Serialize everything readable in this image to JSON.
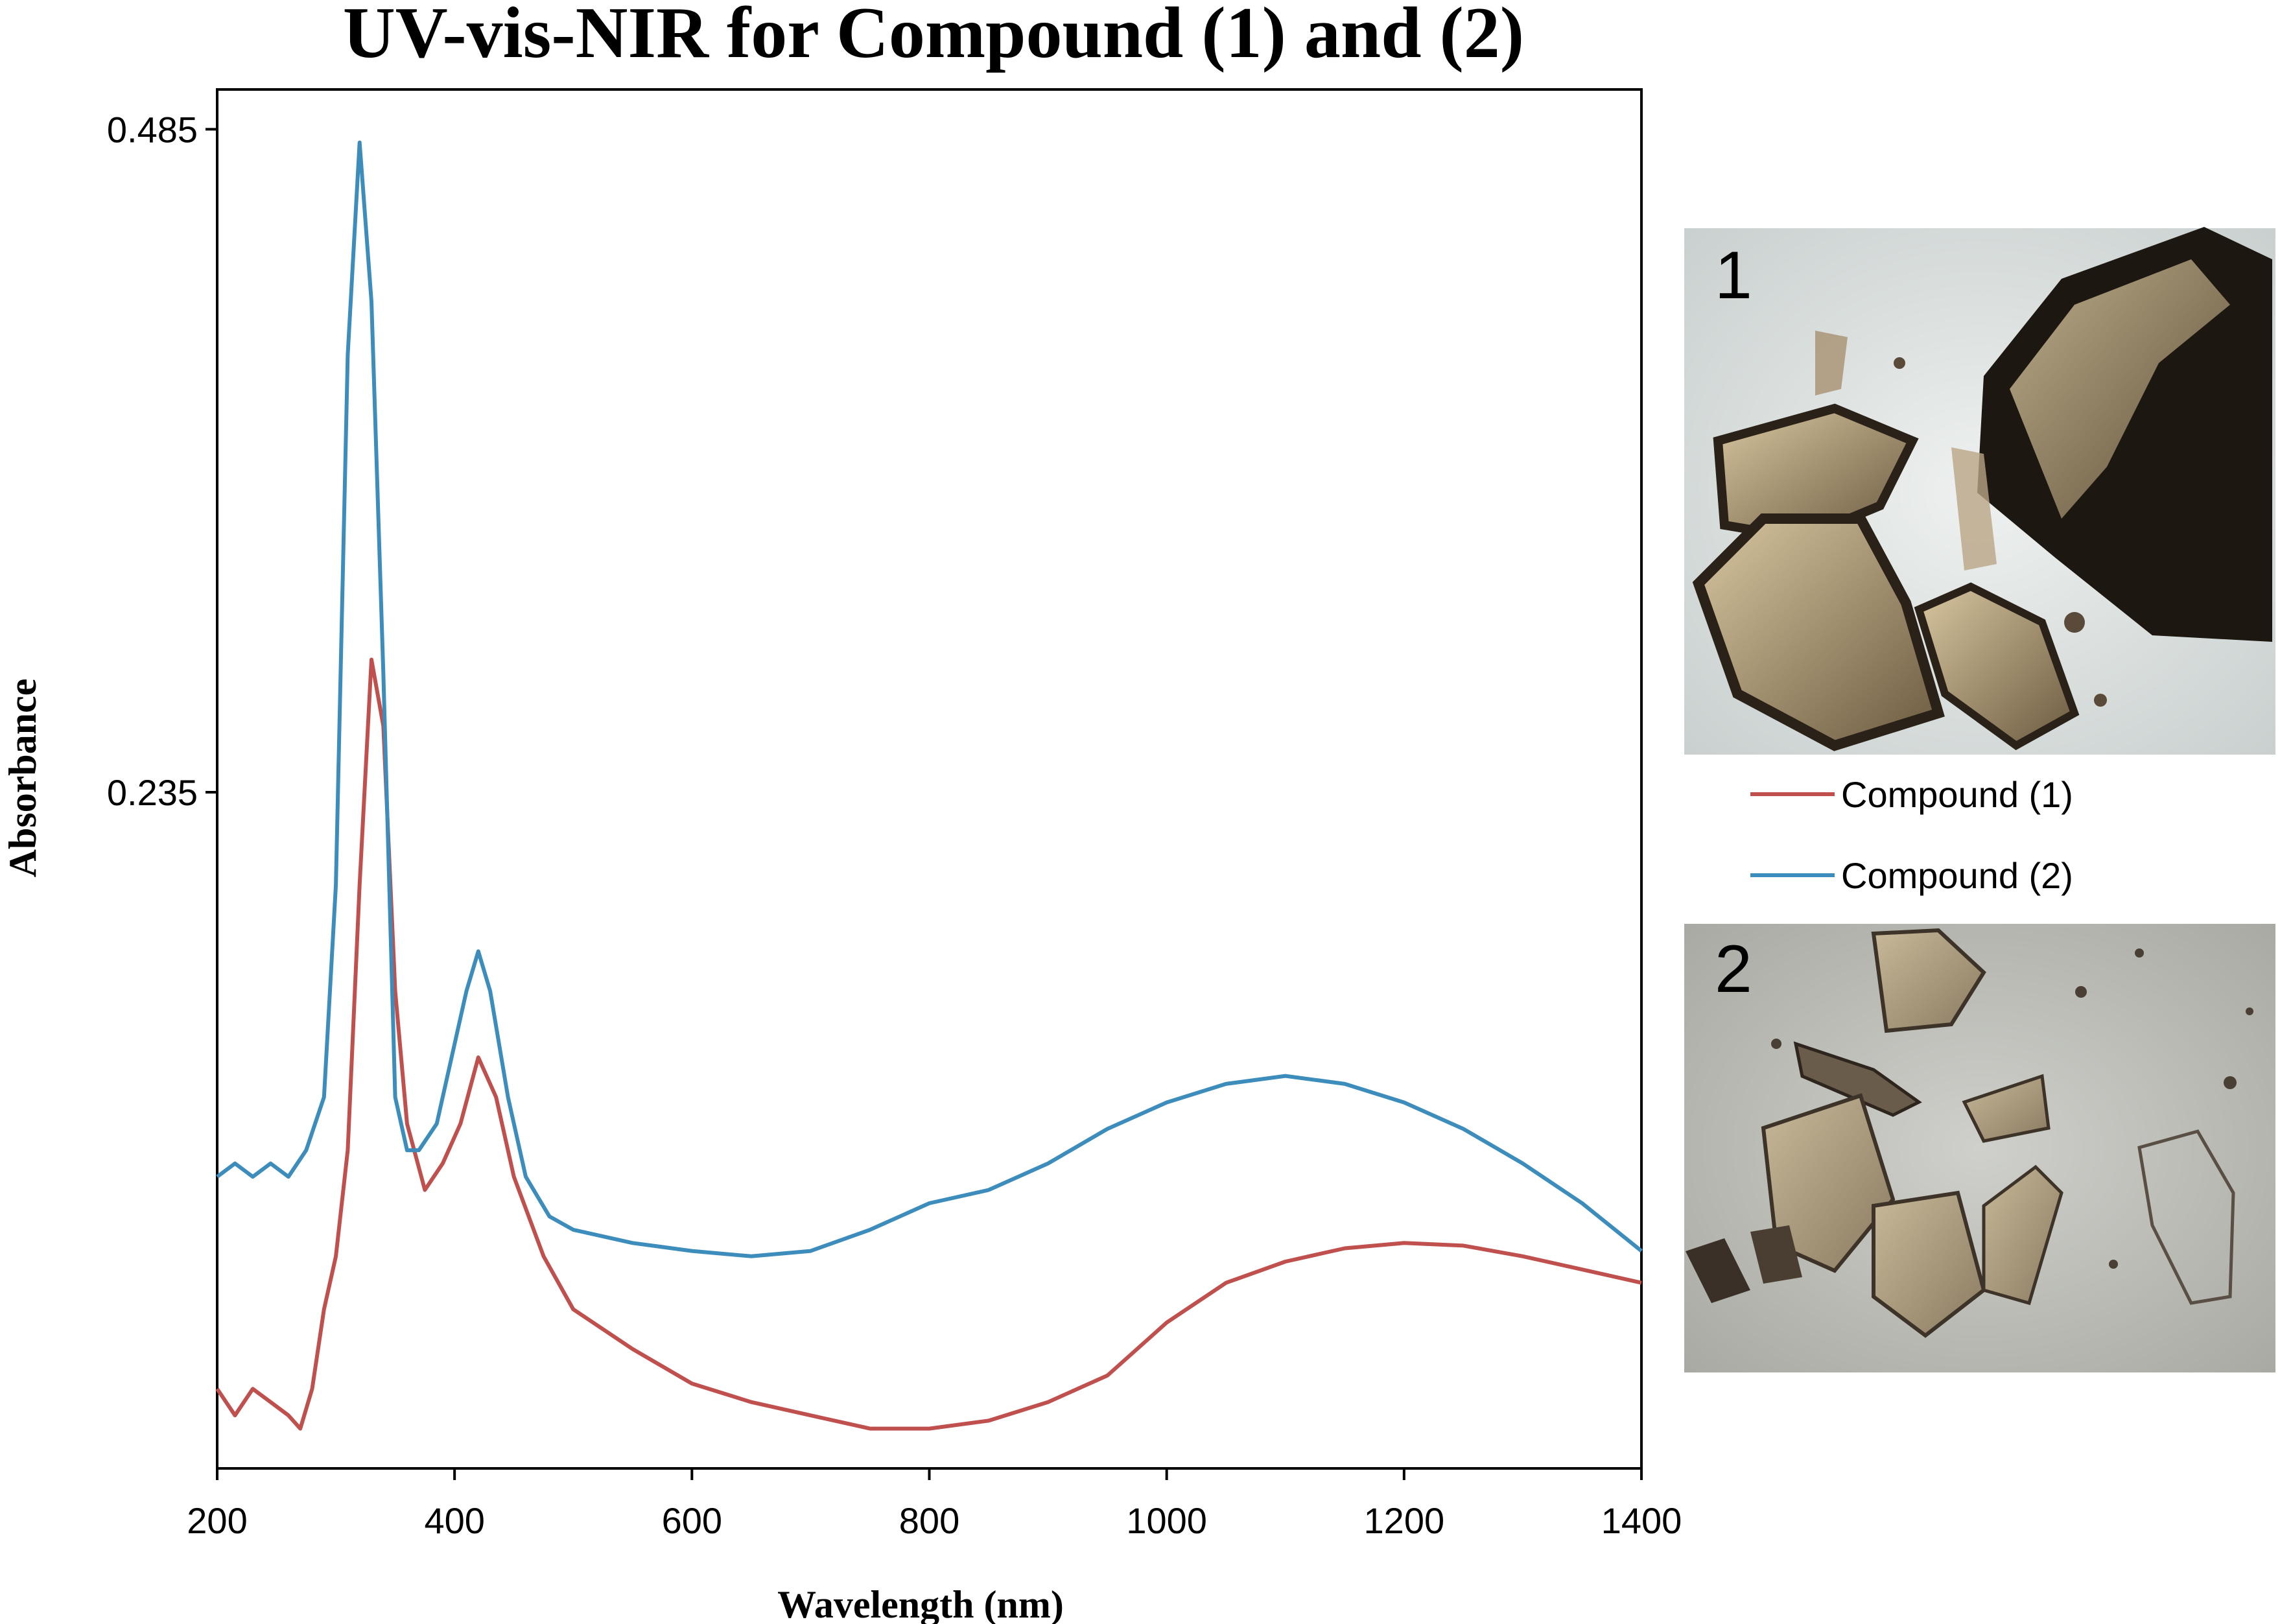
{
  "chart_data": {
    "type": "line",
    "title": "UV-vis-NIR for Compound (1) and (2)",
    "xlabel": "Wavelength (nm)",
    "ylabel": "Absorbance",
    "xlim": [
      200,
      1400
    ],
    "ylim": [
      -0.02,
      0.5
    ],
    "x_ticks": [
      200,
      400,
      600,
      800,
      1000,
      1200,
      1400
    ],
    "y_ticks": [
      0.485,
      0.235
    ],
    "y_tick_labels": [
      "0.485",
      "0.235"
    ],
    "grid": false,
    "legend_position": "right",
    "series": [
      {
        "name": "Compound (1)",
        "color": "#c0504d",
        "x": [
          200,
          215,
          230,
          245,
          260,
          270,
          280,
          290,
          300,
          310,
          320,
          330,
          340,
          350,
          360,
          375,
          390,
          405,
          420,
          435,
          450,
          475,
          500,
          550,
          600,
          650,
          700,
          750,
          800,
          850,
          900,
          950,
          1000,
          1050,
          1100,
          1150,
          1200,
          1250,
          1300,
          1350,
          1400
        ],
        "y": [
          0.01,
          0.0,
          0.01,
          0.005,
          0.0,
          -0.005,
          0.01,
          0.04,
          0.06,
          0.1,
          0.2,
          0.285,
          0.26,
          0.16,
          0.11,
          0.085,
          0.095,
          0.11,
          0.135,
          0.12,
          0.09,
          0.06,
          0.04,
          0.025,
          0.012,
          0.005,
          0.0,
          -0.005,
          -0.005,
          -0.002,
          0.005,
          0.015,
          0.035,
          0.05,
          0.058,
          0.063,
          0.065,
          0.064,
          0.06,
          0.055,
          0.05
        ]
      },
      {
        "name": "Compound (2)",
        "color": "#3c8dbc",
        "x": [
          200,
          215,
          230,
          245,
          260,
          275,
          290,
          300,
          310,
          320,
          330,
          340,
          350,
          360,
          370,
          385,
          400,
          410,
          420,
          430,
          445,
          460,
          480,
          500,
          550,
          600,
          650,
          700,
          750,
          800,
          850,
          900,
          950,
          1000,
          1050,
          1100,
          1150,
          1200,
          1250,
          1300,
          1350,
          1400
        ],
        "y": [
          0.09,
          0.095,
          0.09,
          0.095,
          0.09,
          0.1,
          0.12,
          0.2,
          0.4,
          0.48,
          0.42,
          0.28,
          0.12,
          0.1,
          0.1,
          0.11,
          0.14,
          0.16,
          0.175,
          0.16,
          0.12,
          0.09,
          0.075,
          0.07,
          0.065,
          0.062,
          0.06,
          0.062,
          0.07,
          0.08,
          0.085,
          0.095,
          0.108,
          0.118,
          0.125,
          0.128,
          0.125,
          0.118,
          0.108,
          0.095,
          0.08,
          0.062
        ]
      }
    ]
  },
  "photos": [
    {
      "label": "1"
    },
    {
      "label": "2"
    }
  ]
}
